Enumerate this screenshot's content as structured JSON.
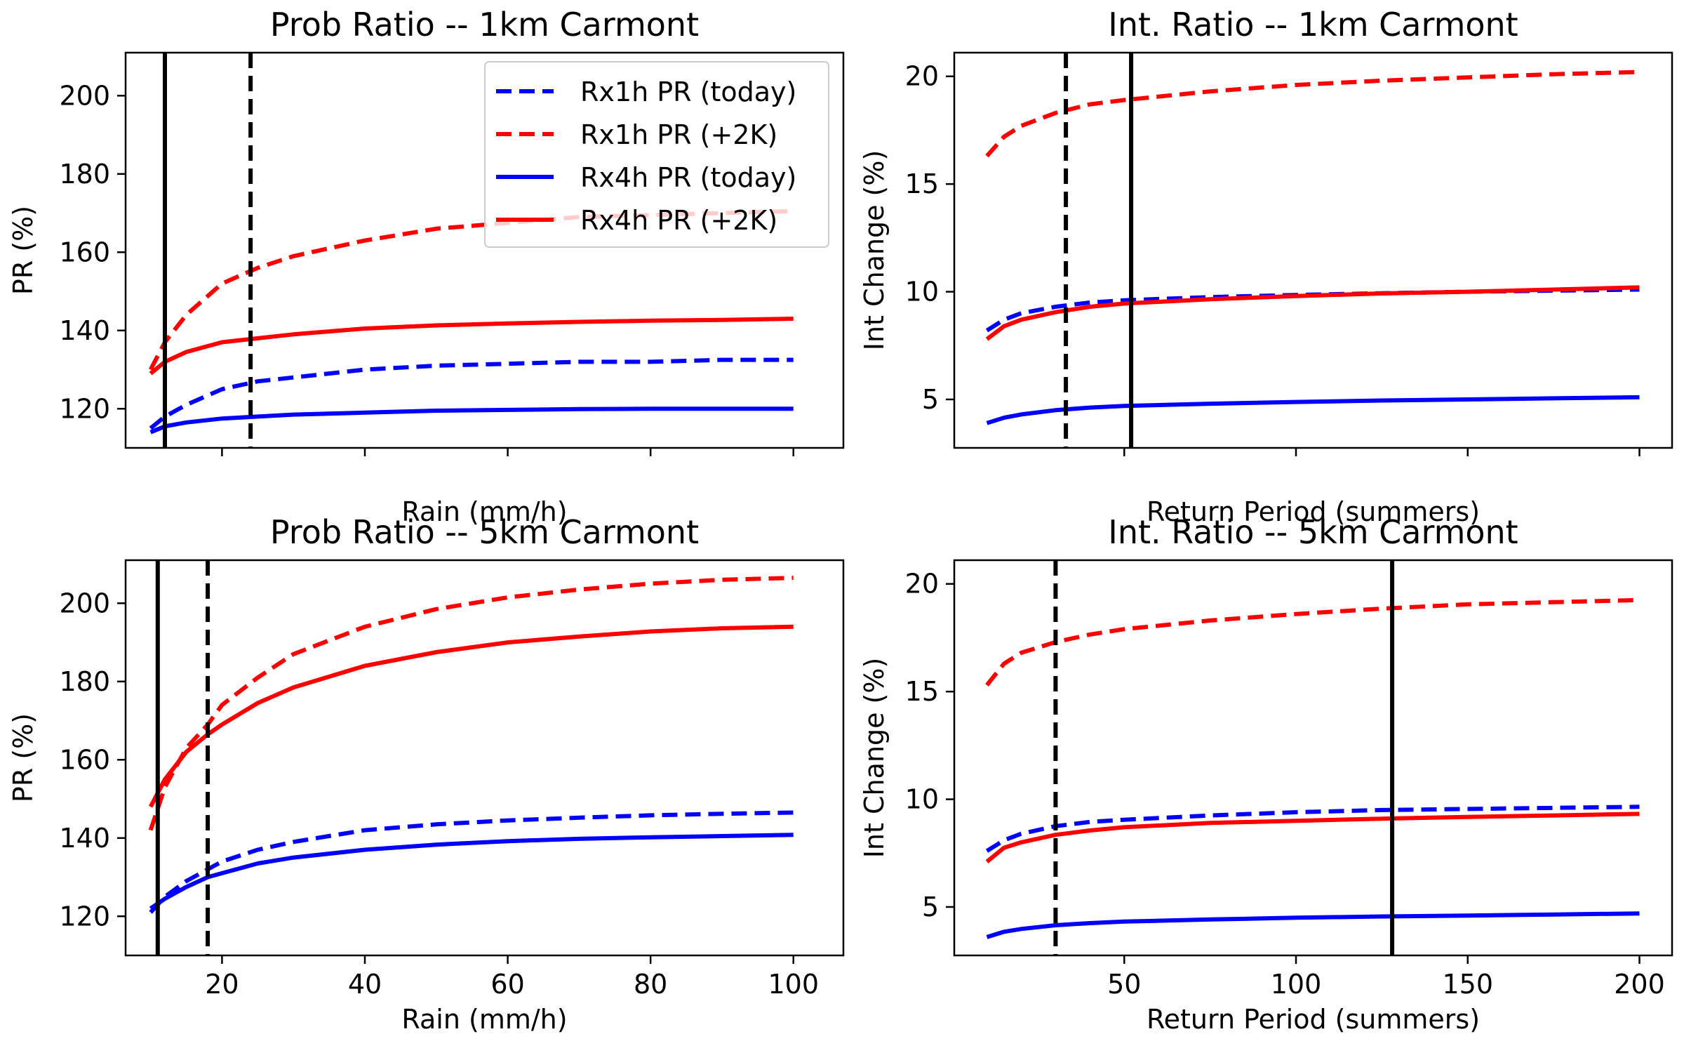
{
  "colors": {
    "today": "#0000ff",
    "plus2k": "#ff0000",
    "marker": "#000000"
  },
  "legend": {
    "placement": "top-right of top-left panel",
    "entries": [
      {
        "label": "Rx1h PR (today)",
        "color": "#0000ff",
        "style": "dashed"
      },
      {
        "label": "Rx1h PR (+2K)",
        "color": "#ff0000",
        "style": "dashed"
      },
      {
        "label": "Rx4h PR (today)",
        "color": "#0000ff",
        "style": "solid"
      },
      {
        "label": "Rx4h PR (+2K)",
        "color": "#ff0000",
        "style": "solid"
      }
    ]
  },
  "chart_data": [
    {
      "type": "line",
      "title": "Prob Ratio -- 1km Carmont",
      "xlabel": "Rain (mm/h)",
      "ylabel": "PR (%)",
      "xlim": [
        6.5,
        107
      ],
      "ylim": [
        110,
        211
      ],
      "xticks": [
        20,
        40,
        60,
        80,
        100
      ],
      "xtick_labels_shown": false,
      "yticks": [
        120,
        140,
        160,
        180,
        200
      ],
      "x": [
        10,
        12,
        15,
        20,
        25,
        30,
        40,
        50,
        60,
        70,
        80,
        90,
        100
      ],
      "series": [
        {
          "name": "Rx1h PR (today)",
          "color": "#0000ff",
          "style": "dashed",
          "values": [
            115,
            118,
            121,
            125,
            127,
            128,
            130,
            131,
            131.5,
            132,
            132,
            132.5,
            132.5
          ]
        },
        {
          "name": "Rx1h PR (+2K)",
          "color": "#ff0000",
          "style": "dashed",
          "values": [
            130,
            137,
            144,
            152,
            156,
            159,
            163,
            166,
            167.5,
            169,
            169.5,
            170,
            170.5
          ]
        },
        {
          "name": "Rx4h PR (today)",
          "color": "#0000ff",
          "style": "solid",
          "values": [
            114,
            115.5,
            116.5,
            117.5,
            118,
            118.5,
            119,
            119.5,
            119.7,
            119.9,
            120,
            120,
            120
          ]
        },
        {
          "name": "Rx4h PR (+2K)",
          "color": "#ff0000",
          "style": "solid",
          "values": [
            129,
            132,
            134.5,
            137,
            138,
            139,
            140.5,
            141.3,
            141.8,
            142.2,
            142.5,
            142.7,
            143
          ]
        }
      ],
      "vlines": [
        {
          "x": 12,
          "style": "solid"
        },
        {
          "x": 24,
          "style": "dashed"
        }
      ]
    },
    {
      "type": "line",
      "title": "Int. Ratio -- 1km Carmont",
      "xlabel": "Return Period (summers)",
      "ylabel": "Int Change (%)",
      "xlim": [
        0.5,
        209.5
      ],
      "ylim": [
        2.75,
        21.1
      ],
      "xticks": [
        50,
        100,
        150,
        200
      ],
      "xtick_labels_shown": false,
      "yticks": [
        5,
        10,
        15,
        20
      ],
      "x": [
        10,
        15,
        20,
        30,
        40,
        50,
        75,
        100,
        125,
        150,
        175,
        200
      ],
      "series": [
        {
          "name": "Rx1h PR (today)",
          "color": "#0000ff",
          "style": "dashed",
          "values": [
            8.2,
            8.7,
            9.0,
            9.3,
            9.5,
            9.6,
            9.75,
            9.85,
            9.93,
            10.0,
            10.05,
            10.1
          ]
        },
        {
          "name": "Rx1h PR (+2K)",
          "color": "#ff0000",
          "style": "dashed",
          "values": [
            16.3,
            17.2,
            17.7,
            18.3,
            18.7,
            18.9,
            19.3,
            19.6,
            19.8,
            19.95,
            20.1,
            20.2
          ]
        },
        {
          "name": "Rx4h PR (today)",
          "color": "#0000ff",
          "style": "solid",
          "values": [
            3.9,
            4.15,
            4.3,
            4.5,
            4.62,
            4.7,
            4.8,
            4.88,
            4.95,
            5.0,
            5.05,
            5.1
          ]
        },
        {
          "name": "Rx4h PR (+2K)",
          "color": "#ff0000",
          "style": "solid",
          "values": [
            7.8,
            8.4,
            8.7,
            9.05,
            9.3,
            9.45,
            9.65,
            9.8,
            9.92,
            10.0,
            10.1,
            10.2
          ]
        }
      ],
      "vlines": [
        {
          "x": 33,
          "style": "dashed"
        },
        {
          "x": 52,
          "style": "solid"
        }
      ]
    },
    {
      "type": "line",
      "title": "Prob Ratio -- 5km Carmont",
      "xlabel": "Rain (mm/h)",
      "ylabel": "PR (%)",
      "xlim": [
        6.5,
        107
      ],
      "ylim": [
        110,
        211
      ],
      "xticks": [
        20,
        40,
        60,
        80,
        100
      ],
      "xtick_labels_shown": true,
      "yticks": [
        120,
        140,
        160,
        180,
        200
      ],
      "x": [
        10,
        12,
        15,
        18,
        20,
        25,
        30,
        40,
        50,
        60,
        70,
        80,
        90,
        100
      ],
      "series": [
        {
          "name": "Rx1h PR (today)",
          "color": "#0000ff",
          "style": "dashed",
          "values": [
            121,
            125,
            129,
            132,
            134,
            137,
            139,
            142,
            143.5,
            144.5,
            145.2,
            145.8,
            146.2,
            146.5
          ]
        },
        {
          "name": "Rx1h PR (+2K)",
          "color": "#ff0000",
          "style": "dashed",
          "values": [
            142,
            153,
            163,
            169,
            174,
            181,
            187,
            194,
            198.5,
            201.5,
            203.5,
            205,
            206,
            206.5
          ]
        },
        {
          "name": "Rx4h PR (today)",
          "color": "#0000ff",
          "style": "solid",
          "values": [
            122,
            124.5,
            127.5,
            130,
            131,
            133.5,
            135,
            137,
            138.3,
            139.2,
            139.8,
            140.2,
            140.5,
            140.8
          ]
        },
        {
          "name": "Rx4h PR (+2K)",
          "color": "#ff0000",
          "style": "solid",
          "values": [
            148,
            155,
            162,
            166.5,
            169,
            174.5,
            178.5,
            184,
            187.5,
            190,
            191.5,
            192.8,
            193.6,
            194
          ]
        }
      ],
      "vlines": [
        {
          "x": 11,
          "style": "solid"
        },
        {
          "x": 18,
          "style": "dashed"
        }
      ]
    },
    {
      "type": "line",
      "title": "Int. Ratio -- 5km Carmont",
      "xlabel": "Return Period (summers)",
      "ylabel": "Int Change (%)",
      "xlim": [
        0.5,
        209.5
      ],
      "ylim": [
        2.75,
        21.1
      ],
      "xticks": [
        50,
        100,
        150,
        200
      ],
      "xtick_labels_shown": true,
      "yticks": [
        5,
        10,
        15,
        20
      ],
      "x": [
        10,
        15,
        20,
        30,
        40,
        50,
        75,
        100,
        125,
        150,
        175,
        200
      ],
      "series": [
        {
          "name": "Rx1h PR (today)",
          "color": "#0000ff",
          "style": "dashed",
          "values": [
            7.6,
            8.1,
            8.4,
            8.75,
            8.95,
            9.05,
            9.25,
            9.4,
            9.5,
            9.55,
            9.6,
            9.65
          ]
        },
        {
          "name": "Rx1h PR (+2K)",
          "color": "#ff0000",
          "style": "dashed",
          "values": [
            15.3,
            16.3,
            16.8,
            17.3,
            17.65,
            17.9,
            18.3,
            18.6,
            18.85,
            19.05,
            19.15,
            19.25
          ]
        },
        {
          "name": "Rx4h PR (today)",
          "color": "#0000ff",
          "style": "solid",
          "values": [
            3.6,
            3.85,
            3.98,
            4.15,
            4.25,
            4.32,
            4.42,
            4.5,
            4.56,
            4.6,
            4.65,
            4.7
          ]
        },
        {
          "name": "Rx4h PR (+2K)",
          "color": "#ff0000",
          "style": "solid",
          "values": [
            7.1,
            7.75,
            8.0,
            8.35,
            8.55,
            8.7,
            8.9,
            9.0,
            9.1,
            9.18,
            9.25,
            9.32
          ]
        }
      ],
      "vlines": [
        {
          "x": 30,
          "style": "dashed"
        },
        {
          "x": 128,
          "style": "solid"
        }
      ]
    }
  ]
}
